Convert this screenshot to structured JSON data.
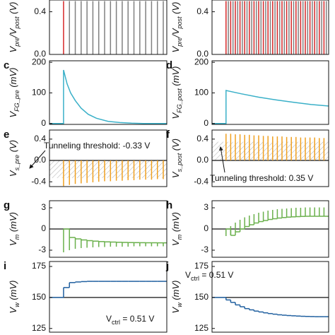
{
  "chart_data": [
    {
      "type": "spike",
      "ylabel": [
        {
          "text": "V"
        },
        {
          "text": "pre",
          "sub": true
        },
        {
          "text": "/V"
        },
        {
          "text": "post",
          "sub": true
        },
        {
          "text": " (V)"
        }
      ],
      "xlim": [
        0,
        100
      ],
      "ylim": [
        0,
        0.51
      ],
      "yticks": [
        {
          "value": 0,
          "label": "0.0"
        },
        0.4
      ],
      "series": [
        {
          "style": "spike",
          "color": "#d62728",
          "x": [
            12
          ],
          "values": [
            0.5
          ]
        },
        {
          "style": "spike",
          "color": "#808080",
          "x": [
            17,
            22,
            27,
            32,
            37,
            42,
            47,
            52,
            57,
            62,
            67,
            72,
            77,
            82,
            87,
            92,
            97
          ],
          "values": [
            0.5,
            0.5,
            0.5,
            0.5,
            0.5,
            0.5,
            0.5,
            0.5,
            0.5,
            0.5,
            0.5,
            0.5,
            0.5,
            0.5,
            0.5,
            0.5,
            0.5
          ]
        }
      ]
    },
    {
      "type": "spike",
      "ylabel": [
        {
          "text": "V"
        },
        {
          "text": "pre",
          "sub": true
        },
        {
          "text": "/V"
        },
        {
          "text": "post",
          "sub": true
        },
        {
          "text": " (V)"
        }
      ],
      "xlim": [
        0,
        100
      ],
      "ylim": [
        0,
        0.51
      ],
      "yticks": [
        {
          "value": 0,
          "label": "0.0"
        },
        0.4
      ],
      "series": [
        {
          "style": "spike",
          "color": "#808080",
          "x": [
            14,
            18,
            22,
            26,
            30,
            34,
            38,
            42,
            46,
            50,
            54,
            58,
            62,
            66,
            70,
            74,
            78,
            82,
            86,
            90,
            94,
            98
          ],
          "values": [
            0.5,
            0.5,
            0.5,
            0.5,
            0.5,
            0.5,
            0.5,
            0.5,
            0.5,
            0.5,
            0.5,
            0.5,
            0.5,
            0.5,
            0.5,
            0.5,
            0.5,
            0.5,
            0.5,
            0.5,
            0.5,
            0.5
          ]
        },
        {
          "style": "spike",
          "color": "#d62728",
          "x": [
            12,
            16,
            20,
            24,
            28,
            32,
            36,
            40,
            44,
            48,
            52,
            56,
            60,
            64,
            68,
            72,
            76,
            80,
            84,
            88,
            92,
            96
          ],
          "values": [
            0.5,
            0.5,
            0.5,
            0.5,
            0.5,
            0.5,
            0.5,
            0.5,
            0.5,
            0.5,
            0.5,
            0.5,
            0.5,
            0.5,
            0.5,
            0.5,
            0.5,
            0.5,
            0.5,
            0.5,
            0.5,
            0.5
          ]
        }
      ]
    },
    {
      "type": "line",
      "label": "c",
      "ylabel": [
        {
          "text": "V"
        },
        {
          "text": "FG_pre",
          "sub": true
        },
        {
          "text": " (mV)"
        }
      ],
      "xlim": [
        0,
        100
      ],
      "ylim": [
        -3,
        205
      ],
      "yticks": [
        0,
        100,
        200
      ],
      "series": [
        {
          "style": "line",
          "color": "#3ab0c8",
          "x": [
            0,
            12,
            12,
            15,
            18,
            22,
            27,
            33,
            40,
            50,
            60,
            70,
            80,
            100
          ],
          "values": [
            0,
            0,
            175,
            130,
            100,
            75,
            50,
            30,
            17,
            7,
            3,
            1,
            0,
            0
          ]
        }
      ]
    },
    {
      "type": "line",
      "label": "d",
      "ylabel": [
        {
          "text": "V"
        },
        {
          "text": "FG_post",
          "sub": true
        },
        {
          "text": " (mV)"
        }
      ],
      "xlim": [
        0,
        100
      ],
      "ylim": [
        -3,
        205
      ],
      "yticks": [
        0,
        100,
        200
      ],
      "series": [
        {
          "style": "line",
          "color": "#3ab0c8",
          "x": [
            0,
            12,
            12,
            25,
            40,
            55,
            70,
            85,
            100
          ],
          "values": [
            0,
            0,
            108,
            97,
            86,
            77,
            69,
            62,
            57
          ]
        }
      ]
    },
    {
      "type": "spike",
      "label": "e",
      "ylabel": [
        {
          "text": "V"
        },
        {
          "text": "s_pre",
          "sub": true
        },
        {
          "text": " (V)"
        }
      ],
      "xlim": [
        0,
        100
      ],
      "ylim": [
        -0.49,
        0.57
      ],
      "yticks": [
        0.4,
        {
          "value": 0,
          "label": "0.0"
        },
        -0.4
      ],
      "baseline": 0,
      "band": [
        -0.33,
        0
      ],
      "annotation": [
        {
          "text": "Tunneling threshold: -0.33 V"
        }
      ],
      "series": [
        {
          "style": "spike",
          "color": "#f0a020",
          "x": [
            12,
            17,
            22,
            27,
            32,
            37,
            42,
            47,
            52,
            57,
            62,
            67,
            72,
            77,
            82,
            87,
            92,
            97
          ],
          "values": [
            -0.48,
            -0.46,
            -0.44,
            -0.43,
            -0.42,
            -0.41,
            -0.4,
            -0.39,
            -0.39,
            -0.38,
            -0.38,
            -0.37,
            -0.37,
            -0.36,
            -0.36,
            -0.36,
            -0.35,
            -0.35
          ]
        }
      ]
    },
    {
      "type": "spike",
      "label": "f",
      "ylabel": [
        {
          "text": "V"
        },
        {
          "text": "s_post",
          "sub": true
        },
        {
          "text": " (V)"
        }
      ],
      "xlim": [
        0,
        100
      ],
      "ylim": [
        -0.49,
        0.57
      ],
      "yticks": [
        0.4,
        {
          "value": 0,
          "label": "0.0"
        },
        -0.4
      ],
      "baseline": 0,
      "band": [
        0,
        0.35
      ],
      "annotation": [
        {
          "text": "Tunneling threshold: 0.35 V"
        }
      ],
      "series": [
        {
          "style": "spike",
          "color": "#f0a020",
          "x": [
            12,
            16,
            20,
            24,
            28,
            32,
            36,
            40,
            44,
            48,
            52,
            56,
            60,
            64,
            68,
            72,
            76,
            80,
            84,
            88,
            92,
            96
          ],
          "values": [
            0.5,
            0.5,
            0.49,
            0.49,
            0.48,
            0.48,
            0.47,
            0.47,
            0.46,
            0.46,
            0.45,
            0.45,
            0.45,
            0.44,
            0.44,
            0.44,
            0.43,
            0.43,
            0.43,
            0.43,
            0.42,
            0.42
          ]
        }
      ]
    },
    {
      "type": "spike",
      "label": "g",
      "ylabel": [
        {
          "text": "V"
        },
        {
          "text": "m",
          "sub": true
        },
        {
          "text": " (mV)"
        }
      ],
      "xlim": [
        0,
        100
      ],
      "ylim": [
        -4,
        4
      ],
      "yticks": [
        3,
        0,
        -3
      ],
      "baseline": 0,
      "series": [
        {
          "style": "spike",
          "color": "#6ab04c",
          "x": [
            12,
            17,
            22,
            27,
            32,
            37,
            42,
            47,
            52,
            57,
            62,
            67,
            72,
            77,
            82,
            87,
            92,
            97
          ],
          "base": [
            0,
            -1.2,
            -1.4,
            -1.55,
            -1.65,
            -1.72,
            -1.78,
            -1.82,
            -1.85,
            -1.88,
            -1.9,
            -1.92,
            -1.93,
            -1.94,
            -1.95,
            -1.95,
            -1.96,
            -1.96
          ],
          "values": [
            -3.3,
            -3,
            -2.8,
            -2.7,
            -2.65,
            -2.6,
            -2.55,
            -2.55,
            -2.5,
            -2.5,
            -2.5,
            -2.5,
            -2.45,
            -2.45,
            -2.45,
            -2.45,
            -2.45,
            -2.45
          ]
        }
      ]
    },
    {
      "type": "spike",
      "label": "h",
      "ylabel": [
        {
          "text": "V"
        },
        {
          "text": "m",
          "sub": true
        },
        {
          "text": " (mV)"
        }
      ],
      "xlim": [
        0,
        100
      ],
      "ylim": [
        -4,
        4
      ],
      "yticks": [
        3,
        0,
        -3
      ],
      "baseline": 0,
      "series": [
        {
          "style": "spike",
          "color": "#6ab04c",
          "x": [
            12,
            16,
            20,
            24,
            28,
            32,
            36,
            40,
            44,
            48,
            52,
            56,
            60,
            64,
            68,
            72,
            76,
            80,
            84,
            88,
            92,
            96
          ],
          "base": [
            0,
            -0.9,
            -0.4,
            0,
            0.35,
            0.6,
            0.85,
            1.05,
            1.2,
            1.35,
            1.45,
            1.55,
            1.62,
            1.68,
            1.72,
            1.75,
            1.78,
            1.8,
            1.8,
            1.8,
            1.8,
            1.8
          ],
          "values": [
            -1,
            0.4,
            0.9,
            1.3,
            1.65,
            1.9,
            2.1,
            2.3,
            2.45,
            2.6,
            2.7,
            2.8,
            2.85,
            2.9,
            2.95,
            3,
            3,
            3.05,
            3.05,
            3.05,
            3.05,
            3.05
          ]
        }
      ]
    },
    {
      "type": "step",
      "label": "i",
      "ylabel": [
        {
          "text": "V"
        },
        {
          "text": "w",
          "sub": true
        },
        {
          "text": " (mV)"
        }
      ],
      "xlim": [
        0,
        100
      ],
      "ylim": [
        122,
        179
      ],
      "yticks": [
        125,
        150,
        175
      ],
      "baseline": 150,
      "annotation": [
        {
          "text": "V"
        },
        {
          "text": "ctrl",
          "sub": true
        },
        {
          "text": " = 0.51 V"
        }
      ],
      "series": [
        {
          "style": "step",
          "color": "#1f5f9f",
          "x": [
            0,
            12,
            17,
            22,
            27,
            32,
            37,
            42,
            47,
            52,
            57,
            62,
            67,
            72,
            77,
            82,
            87,
            92,
            97
          ],
          "values": [
            150,
            158,
            162,
            162.5,
            162.8,
            163,
            163,
            163,
            163,
            163,
            163,
            163,
            163,
            163,
            163,
            163,
            163,
            163,
            163
          ]
        }
      ]
    },
    {
      "type": "step",
      "label": "j",
      "ylabel": [
        {
          "text": "V"
        },
        {
          "text": "w",
          "sub": true
        },
        {
          "text": " (mV)"
        }
      ],
      "xlim": [
        0,
        100
      ],
      "ylim": [
        122,
        179
      ],
      "yticks": [
        125,
        150,
        175
      ],
      "baseline": 150,
      "annotation": [
        {
          "text": "V"
        },
        {
          "text": "ctrl",
          "sub": true
        },
        {
          "text": " = 0.51 V"
        }
      ],
      "series": [
        {
          "style": "step",
          "color": "#1f5f9f",
          "x": [
            0,
            12,
            16,
            20,
            24,
            28,
            32,
            36,
            40,
            44,
            48,
            52,
            56,
            60,
            64,
            68,
            72,
            76,
            80,
            84,
            88,
            92,
            96
          ],
          "values": [
            150,
            148,
            146,
            144,
            142.5,
            141,
            140,
            139,
            138.3,
            137.6,
            137,
            136.5,
            136,
            135.7,
            135.4,
            135.2,
            135,
            134.8,
            134.7,
            134.6,
            134.5,
            134.5,
            134.5
          ]
        }
      ]
    }
  ]
}
